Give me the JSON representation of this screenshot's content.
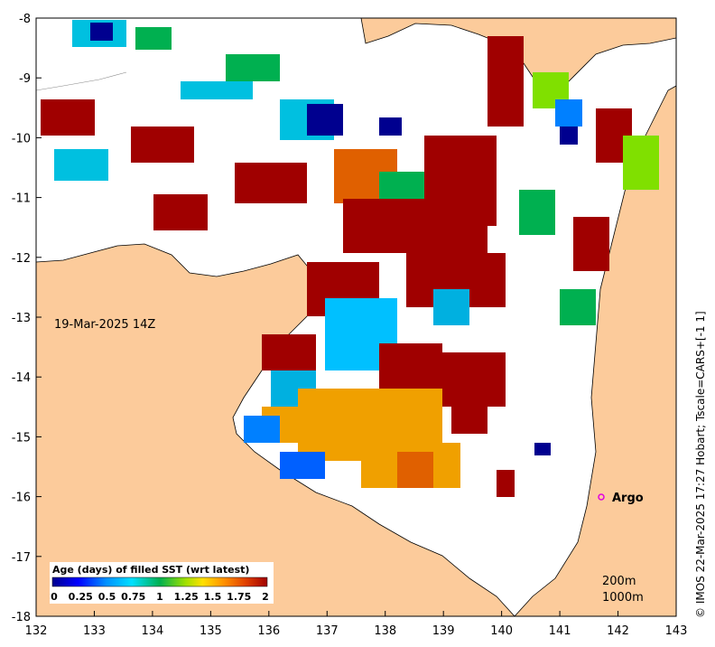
{
  "map": {
    "date_label": "19-Mar-2025 14Z",
    "credit": "© IMOS 22-Mar-2025 17:27 Hobart; Tscale=CARS+[-1 1]",
    "x_ticks": [
      "132",
      "133",
      "134",
      "135",
      "136",
      "137",
      "138",
      "139",
      "140",
      "141",
      "142",
      "143"
    ],
    "y_ticks": [
      "-8",
      "-9",
      "-10",
      "-11",
      "-12",
      "-13",
      "-14",
      "-15",
      "-16",
      "-17",
      "-18"
    ],
    "xlim": [
      132,
      143
    ],
    "ylim": [
      -18,
      -8
    ],
    "legend": {
      "title": "Age (days) of filled SST (wrt latest)",
      "ticks": [
        "0",
        "0.25",
        "0.5",
        "0.75",
        "1",
        "1.25",
        "1.5",
        "1.75",
        "2"
      ],
      "range": [
        0,
        2
      ]
    },
    "depth_labels": [
      "200m",
      "1000m"
    ],
    "marker": {
      "label": "Argo",
      "lon": 141.7,
      "lat": -16.0,
      "color": "#e000e0"
    },
    "colors": {
      "land": "#fccb9b",
      "ocean_nodata": "#ffffff",
      "age_0": "#00008f",
      "age_1": "#00b050",
      "age_2": "#a00000"
    }
  }
}
